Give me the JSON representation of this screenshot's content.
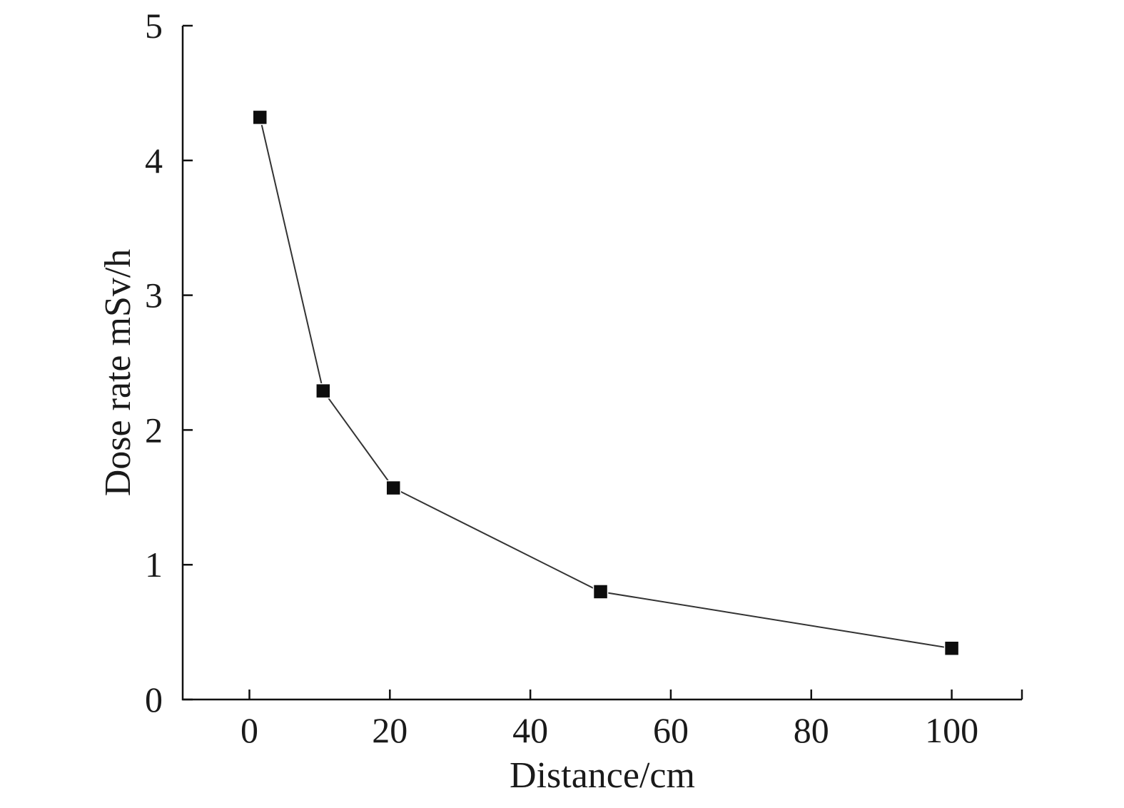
{
  "chart_data": {
    "type": "line",
    "title": "",
    "xlabel": "Distance/cm",
    "ylabel": "Dose rate mSv/h",
    "xlim": [
      -9.5,
      110
    ],
    "ylim": [
      0,
      5
    ],
    "x_ticks": [
      0,
      20,
      40,
      60,
      80,
      100
    ],
    "y_ticks": [
      0,
      1,
      2,
      3,
      4,
      5
    ],
    "x_tick_labels": [
      "0",
      "20",
      "40",
      "60",
      "80",
      "100"
    ],
    "y_tick_labels": [
      "0",
      "1",
      "2",
      "3",
      "4",
      "5"
    ],
    "grid": false,
    "legend": "none",
    "marker": "square",
    "series": [
      {
        "x": [
          1.5,
          10.5,
          20.5,
          50,
          100
        ],
        "y": [
          4.32,
          2.29,
          1.57,
          0.8,
          0.38
        ]
      }
    ]
  }
}
